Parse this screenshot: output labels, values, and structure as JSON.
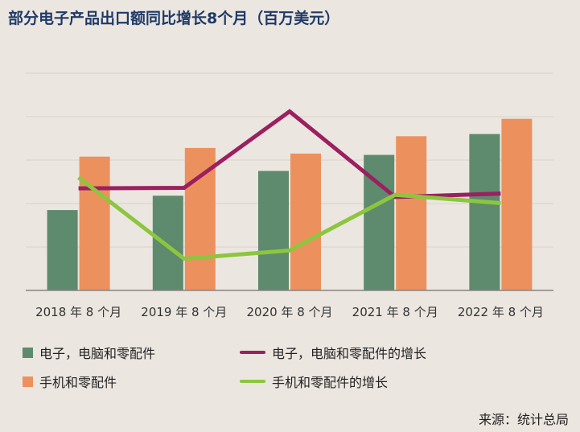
{
  "title": "部分电子产品出口额同比增长8个月（百万美元）",
  "source": "来源：统计总局",
  "colors": {
    "electronics": "#5e8a6e",
    "phones": "#ec915d",
    "electronics_growth": "#9b2060",
    "phones_growth": "#8cc63f",
    "grid": "#d8d0ca",
    "axis": "#8a8480"
  },
  "legend": {
    "electronics": "电子，电脑和零配件",
    "electronics_growth": "电子，电脑和零配件的增长",
    "phones": "手机和零配件",
    "phones_growth": "手机和零配件的增长"
  },
  "chart_data": {
    "type": "bar",
    "title": "部分电子产品出口额同比增长8个月（百万美元）",
    "categories": [
      "2018 年 8 个月",
      "2019 年 8 个月",
      "2020 年 8 个月",
      "2021 年 8 个月",
      "2022 年 8 个月"
    ],
    "ylim": [
      0,
      50
    ],
    "gridlines": [
      0,
      10,
      20,
      30,
      40,
      50
    ],
    "series": [
      {
        "name": "电子，电脑和零配件",
        "kind": "bar",
        "values": [
          18.5,
          21.8,
          27.5,
          31.2,
          36.0
        ]
      },
      {
        "name": "手机和零配件",
        "kind": "bar",
        "values": [
          30.8,
          32.8,
          31.5,
          35.5,
          39.5
        ]
      },
      {
        "name": "电子，电脑和零配件的增长",
        "kind": "line",
        "values": [
          23.5,
          23.6,
          41.2,
          21.5,
          22.3
        ]
      },
      {
        "name": "手机和零配件的增长",
        "kind": "line",
        "values": [
          26.0,
          7.3,
          9.2,
          22.0,
          20.1
        ]
      }
    ]
  }
}
